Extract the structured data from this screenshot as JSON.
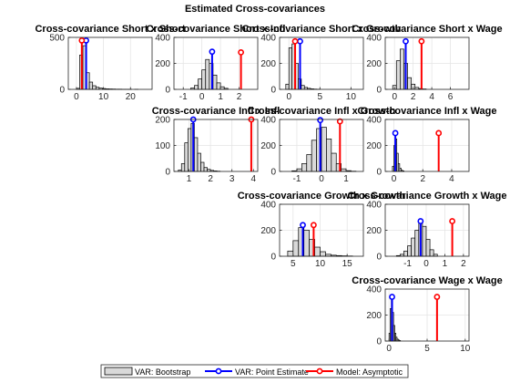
{
  "figure_title": "Estimated Cross-covariances",
  "colors": {
    "bootstrap_fill": "#d9d9d9",
    "bootstrap_edge": "#000000",
    "point_estimate": "#0000ff",
    "model": "#ff0000",
    "grid": "#e5e5e5"
  },
  "legend": {
    "placement": "bottom-center",
    "bootstrap_label": "VAR: Bootstrap",
    "point_label": "VAR: Point Estimate",
    "model_label": "Model: Asymptotic"
  },
  "chart_data": [
    {
      "type": "bar",
      "title": "Cross-covariance Short x Short",
      "grid_row": 0,
      "grid_col": 0,
      "xlim": [
        -3,
        28
      ],
      "ylim": [
        0,
        500
      ],
      "xticks": [
        0,
        10,
        20
      ],
      "xtick_labels": [
        "0",
        "10",
        "20"
      ],
      "yticks": [
        0,
        500
      ],
      "ytick_labels": [
        "0",
        "500"
      ],
      "bin_edges": [
        0,
        1.2,
        2.4,
        3.6,
        4.8,
        6,
        7.2,
        8.4,
        9.6,
        10.8,
        12,
        13.2,
        14.4,
        15.6,
        16.8,
        18,
        19.2,
        20.4,
        21.6,
        22.8,
        24
      ],
      "counts": [
        10,
        330,
        420,
        160,
        70,
        35,
        20,
        12,
        8,
        5,
        4,
        3,
        2,
        2,
        1,
        1,
        1,
        0,
        1,
        0
      ],
      "point_estimate": 3.6,
      "point_height": 470,
      "model_value": 2.0,
      "model_height": 470
    },
    {
      "type": "bar",
      "title": "Cross-covariance Short x Infl",
      "grid_row": 0,
      "grid_col": 1,
      "xlim": [
        -1.5,
        3
      ],
      "ylim": [
        0,
        400
      ],
      "xticks": [
        -1,
        0,
        1,
        2
      ],
      "xtick_labels": [
        "-1",
        "0",
        "1",
        "2"
      ],
      "yticks": [
        0,
        200,
        400
      ],
      "ytick_labels": [
        "0",
        "200",
        "400"
      ],
      "bin_edges": [
        -0.6,
        -0.4,
        -0.2,
        0,
        0.2,
        0.4,
        0.6,
        0.8,
        1.0,
        1.2,
        1.4
      ],
      "counts": [
        10,
        30,
        80,
        150,
        230,
        200,
        110,
        50,
        20,
        8
      ],
      "point_estimate": 0.55,
      "point_height": 290,
      "model_value": 2.1,
      "model_height": 285
    },
    {
      "type": "bar",
      "title": "Cross-covariance Short x Growth",
      "grid_row": 0,
      "grid_col": 2,
      "xlim": [
        -1.5,
        12
      ],
      "ylim": [
        0,
        400
      ],
      "xticks": [
        0,
        5,
        10
      ],
      "xtick_labels": [
        "0",
        "5",
        "10"
      ],
      "yticks": [
        0,
        200,
        400
      ],
      "ytick_labels": [
        "0",
        "200",
        "400"
      ],
      "bin_edges": [
        -0.5,
        0,
        0.5,
        1.0,
        1.5,
        2.0,
        2.5,
        3.0,
        3.5,
        4.0,
        4.5,
        5.0
      ],
      "counts": [
        40,
        320,
        350,
        200,
        80,
        30,
        15,
        8,
        4,
        2,
        1
      ],
      "point_estimate": 1.8,
      "point_height": 370,
      "model_value": 1.0,
      "model_height": 370
    },
    {
      "type": "bar",
      "title": "Cross-covariance Short x Wage",
      "grid_row": 0,
      "grid_col": 3,
      "xlim": [
        -1,
        8
      ],
      "ylim": [
        0,
        400
      ],
      "xticks": [
        0,
        2,
        4,
        6
      ],
      "xtick_labels": [
        "0",
        "2",
        "4",
        "6"
      ],
      "yticks": [
        0,
        200,
        400
      ],
      "ytick_labels": [
        "0",
        "200",
        "400"
      ],
      "bin_edges": [
        -0.2,
        0.2,
        0.6,
        1.0,
        1.4,
        1.8,
        2.2,
        2.6,
        3.0,
        3.4
      ],
      "counts": [
        30,
        220,
        310,
        200,
        90,
        40,
        15,
        6,
        3
      ],
      "point_estimate": 1.2,
      "point_height": 370,
      "model_value": 2.9,
      "model_height": 370
    },
    {
      "type": "bar",
      "title": "Cross-covariance Infl x Infl",
      "grid_row": 1,
      "grid_col": 1,
      "xlim": [
        0.3,
        4.2
      ],
      "ylim": [
        0,
        200
      ],
      "xticks": [
        1,
        2,
        3,
        4
      ],
      "xtick_labels": [
        "1",
        "2",
        "3",
        "4"
      ],
      "yticks": [
        0,
        100,
        200
      ],
      "ytick_labels": [
        "0",
        "100",
        "200"
      ],
      "bin_edges": [
        0.5,
        0.65,
        0.8,
        0.95,
        1.1,
        1.25,
        1.4,
        1.55,
        1.7,
        1.85,
        2.0,
        2.15,
        2.3,
        2.45
      ],
      "counts": [
        5,
        30,
        110,
        165,
        185,
        130,
        70,
        35,
        15,
        8,
        4,
        2,
        1
      ],
      "point_estimate": 1.2,
      "point_height": 200,
      "model_value": 3.9,
      "model_height": 200
    },
    {
      "type": "bar",
      "title": "Cross-covariance Infl x Growth",
      "grid_row": 1,
      "grid_col": 2,
      "xlim": [
        -1.7,
        1.7
      ],
      "ylim": [
        0,
        400
      ],
      "xticks": [
        -1,
        0,
        1
      ],
      "xtick_labels": [
        "-1",
        "0",
        "1"
      ],
      "yticks": [
        0,
        200,
        400
      ],
      "ytick_labels": [
        "0",
        "200",
        "400"
      ],
      "bin_edges": [
        -1.2,
        -1.0,
        -0.8,
        -0.6,
        -0.4,
        -0.2,
        0,
        0.2,
        0.4,
        0.6,
        0.8,
        1.0,
        1.2,
        1.4
      ],
      "counts": [
        5,
        20,
        60,
        130,
        240,
        330,
        340,
        250,
        140,
        60,
        20,
        6,
        2
      ],
      "point_estimate": -0.05,
      "point_height": 395,
      "model_value": 0.75,
      "model_height": 385
    },
    {
      "type": "bar",
      "title": "Cross-covariance Infl x Wage",
      "grid_row": 1,
      "grid_col": 3,
      "xlim": [
        -0.6,
        5.2
      ],
      "ylim": [
        0,
        400
      ],
      "xticks": [
        0,
        2,
        4
      ],
      "xtick_labels": [
        "0",
        "2",
        "4"
      ],
      "yticks": [
        0,
        200,
        400
      ],
      "ytick_labels": [
        "0",
        "200",
        "400"
      ],
      "bin_edges": [
        -0.1,
        0,
        0.1,
        0.2,
        0.3,
        0.4,
        0.5,
        0.6,
        0.7
      ],
      "counts": [
        40,
        200,
        250,
        140,
        60,
        25,
        10,
        4
      ],
      "point_estimate": 0.1,
      "point_height": 295,
      "model_value": 3.1,
      "model_height": 295
    },
    {
      "type": "bar",
      "title": "Cross-covariance Growth x Growth",
      "grid_row": 2,
      "grid_col": 2,
      "xlim": [
        2.5,
        18
      ],
      "ylim": [
        0,
        400
      ],
      "xticks": [
        5,
        10,
        15
      ],
      "xtick_labels": [
        "5",
        "10",
        "15"
      ],
      "yticks": [
        0,
        200,
        400
      ],
      "ytick_labels": [
        "0",
        "200",
        "400"
      ],
      "bin_edges": [
        4,
        5,
        6,
        7,
        8,
        9,
        10,
        11,
        12,
        13,
        14,
        15,
        16
      ],
      "counts": [
        40,
        120,
        220,
        200,
        130,
        70,
        35,
        15,
        8,
        5,
        3,
        2
      ],
      "point_estimate": 6.8,
      "point_height": 240,
      "model_value": 8.8,
      "model_height": 240
    },
    {
      "type": "bar",
      "title": "Cross-covariance Growth x Wage",
      "grid_row": 2,
      "grid_col": 3,
      "xlim": [
        -2.2,
        2.3
      ],
      "ylim": [
        0,
        400
      ],
      "xticks": [
        -1,
        0,
        1,
        2
      ],
      "xtick_labels": [
        "-1",
        "0",
        "1",
        "2"
      ],
      "yticks": [
        0,
        200,
        400
      ],
      "ytick_labels": [
        "0",
        "200",
        "400"
      ],
      "bin_edges": [
        -1.6,
        -1.4,
        -1.2,
        -1.0,
        -0.8,
        -0.6,
        -0.4,
        -0.2,
        0,
        0.2,
        0.4,
        0.6
      ],
      "counts": [
        5,
        15,
        40,
        80,
        140,
        200,
        260,
        230,
        130,
        50,
        15
      ],
      "point_estimate": -0.3,
      "point_height": 270,
      "model_value": 1.4,
      "model_height": 270
    },
    {
      "type": "bar",
      "title": "Cross-covariance Wage x Wage",
      "grid_row": 3,
      "grid_col": 3,
      "xlim": [
        -0.5,
        10.5
      ],
      "ylim": [
        0,
        400
      ],
      "xticks": [
        0,
        5,
        10
      ],
      "xtick_labels": [
        "0",
        "5",
        "10"
      ],
      "yticks": [
        0,
        200,
        400
      ],
      "ytick_labels": [
        "0",
        "200",
        "400"
      ],
      "bin_edges": [
        0,
        0.15,
        0.3,
        0.45,
        0.6,
        0.75,
        0.9,
        1.05,
        1.2,
        1.35,
        1.5
      ],
      "counts": [
        60,
        250,
        330,
        220,
        120,
        60,
        30,
        15,
        8,
        4
      ],
      "point_estimate": 0.4,
      "point_height": 340,
      "model_value": 6.3,
      "model_height": 340
    }
  ]
}
